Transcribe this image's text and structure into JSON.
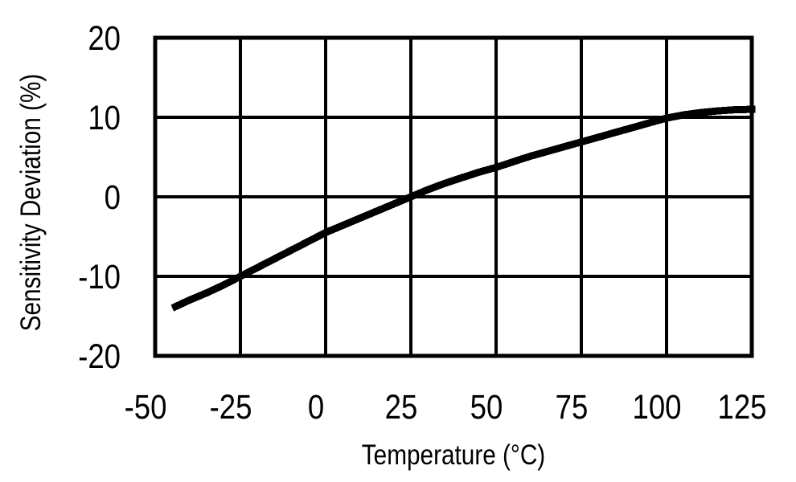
{
  "chart_data": {
    "type": "line",
    "title": "",
    "xlabel": "Temperature (°C)",
    "ylabel": "Sensitivity Deviation (%)",
    "xlim": [
      -50,
      125
    ],
    "ylim": [
      -20,
      20
    ],
    "x_ticks": [
      -50,
      -25,
      0,
      25,
      50,
      75,
      100,
      125
    ],
    "y_ticks": [
      -20,
      -10,
      0,
      10,
      20
    ],
    "x_tick_labels": [
      "-50",
      "-25",
      "0",
      "25",
      "50",
      "75",
      "100",
      "125"
    ],
    "y_tick_labels": [
      "-20",
      "-10",
      "0",
      "10",
      "20"
    ],
    "grid": true,
    "legend": false,
    "series": [
      {
        "name": "sensitivity-deviation",
        "color": "#000000",
        "points": [
          [
            -44,
            -13.8
          ],
          [
            -40,
            -13.0
          ],
          [
            -35,
            -12.1
          ],
          [
            -30,
            -11.1
          ],
          [
            -25,
            -10.0
          ],
          [
            -20,
            -8.9
          ],
          [
            -15,
            -7.8
          ],
          [
            -10,
            -6.7
          ],
          [
            -5,
            -5.6
          ],
          [
            0,
            -4.5
          ],
          [
            5,
            -3.6
          ],
          [
            10,
            -2.7
          ],
          [
            15,
            -1.8
          ],
          [
            20,
            -0.9
          ],
          [
            25,
            0.0
          ],
          [
            30,
            0.9
          ],
          [
            35,
            1.7
          ],
          [
            40,
            2.4
          ],
          [
            45,
            3.1
          ],
          [
            50,
            3.7
          ],
          [
            55,
            4.4
          ],
          [
            60,
            5.1
          ],
          [
            65,
            5.7
          ],
          [
            70,
            6.3
          ],
          [
            75,
            6.9
          ],
          [
            80,
            7.5
          ],
          [
            85,
            8.1
          ],
          [
            90,
            8.7
          ],
          [
            95,
            9.3
          ],
          [
            100,
            9.9
          ],
          [
            105,
            10.3
          ],
          [
            110,
            10.6
          ],
          [
            115,
            10.8
          ],
          [
            120,
            10.95
          ],
          [
            125,
            11.0
          ]
        ]
      }
    ]
  },
  "colors": {
    "background": "#ffffff",
    "grid": "#000000",
    "border": "#000000",
    "line": "#000000",
    "text": "#000000"
  }
}
